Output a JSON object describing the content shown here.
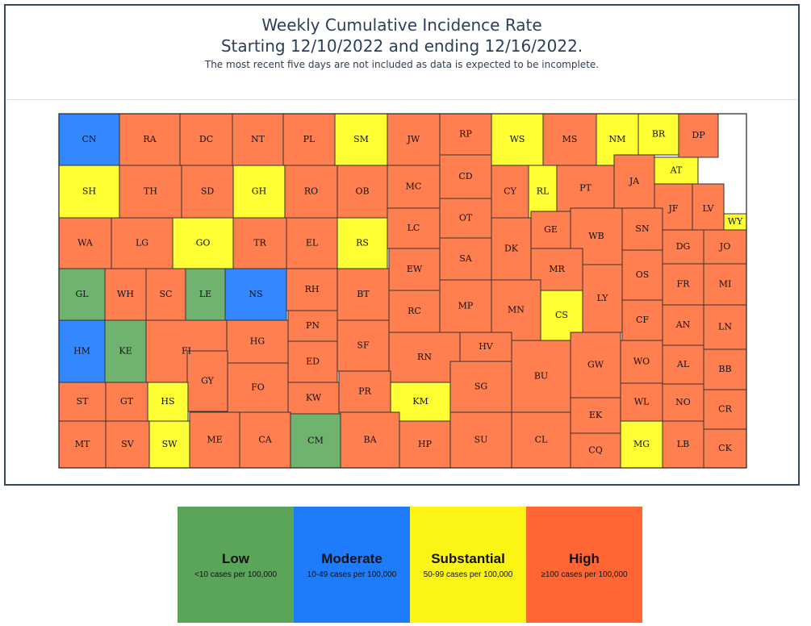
{
  "title_line1": "Weekly Cumulative Incidence Rate",
  "title_line2": "Starting 12/10/2022 and ending 12/16/2022.",
  "subtitle": "The most recent five days are not included as data is expected to be incomplete.",
  "colors": {
    "map_low": "#6fb36f",
    "map_moderate": "#3388ff",
    "map_substantial": "#ffff33",
    "map_high": "#ff7f50",
    "legend_low": "#5aa55a",
    "legend_moderate": "#1e7cfb",
    "legend_substantial": "#fcf414",
    "legend_high": "#ff6633"
  },
  "legend": [
    {
      "key": "low",
      "label": "Low",
      "desc": "<10 cases per 100,000"
    },
    {
      "key": "moderate",
      "label": "Moderate",
      "desc": "10-49 cases per 100,000"
    },
    {
      "key": "substantial",
      "label": "Substantial",
      "desc": "50-99 cases per 100,000"
    },
    {
      "key": "high",
      "label": "High",
      "desc": "≥100 cases per 100,000"
    }
  ],
  "counties": [
    {
      "name": "CN",
      "level": "moderate"
    },
    {
      "name": "RA",
      "level": "high"
    },
    {
      "name": "DC",
      "level": "high"
    },
    {
      "name": "NT",
      "level": "high"
    },
    {
      "name": "PL",
      "level": "high"
    },
    {
      "name": "SM",
      "level": "substantial"
    },
    {
      "name": "JW",
      "level": "high"
    },
    {
      "name": "RP",
      "level": "high"
    },
    {
      "name": "WS",
      "level": "substantial"
    },
    {
      "name": "MS",
      "level": "high"
    },
    {
      "name": "NM",
      "level": "substantial"
    },
    {
      "name": "BR",
      "level": "substantial"
    },
    {
      "name": "DP",
      "level": "high"
    },
    {
      "name": "SH",
      "level": "substantial"
    },
    {
      "name": "TH",
      "level": "high"
    },
    {
      "name": "SD",
      "level": "high"
    },
    {
      "name": "GH",
      "level": "substantial"
    },
    {
      "name": "RO",
      "level": "high"
    },
    {
      "name": "OB",
      "level": "high"
    },
    {
      "name": "MC",
      "level": "high"
    },
    {
      "name": "CD",
      "level": "high"
    },
    {
      "name": "CY",
      "level": "high"
    },
    {
      "name": "RL",
      "level": "substantial"
    },
    {
      "name": "PT",
      "level": "high"
    },
    {
      "name": "JA",
      "level": "high"
    },
    {
      "name": "AT",
      "level": "substantial"
    },
    {
      "name": "JF",
      "level": "high"
    },
    {
      "name": "LV",
      "level": "high"
    },
    {
      "name": "WY",
      "level": "substantial"
    },
    {
      "name": "WA",
      "level": "high"
    },
    {
      "name": "LG",
      "level": "high"
    },
    {
      "name": "GO",
      "level": "substantial"
    },
    {
      "name": "TR",
      "level": "high"
    },
    {
      "name": "EL",
      "level": "high"
    },
    {
      "name": "RS",
      "level": "substantial"
    },
    {
      "name": "LC",
      "level": "high"
    },
    {
      "name": "OT",
      "level": "high"
    },
    {
      "name": "DK",
      "level": "high"
    },
    {
      "name": "GE",
      "level": "high"
    },
    {
      "name": "WB",
      "level": "high"
    },
    {
      "name": "SN",
      "level": "high"
    },
    {
      "name": "DG",
      "level": "high"
    },
    {
      "name": "JO",
      "level": "high"
    },
    {
      "name": "GL",
      "level": "low"
    },
    {
      "name": "WH",
      "level": "high"
    },
    {
      "name": "SC",
      "level": "high"
    },
    {
      "name": "LE",
      "level": "low"
    },
    {
      "name": "NS",
      "level": "moderate"
    },
    {
      "name": "RH",
      "level": "high"
    },
    {
      "name": "BT",
      "level": "high"
    },
    {
      "name": "EW",
      "level": "high"
    },
    {
      "name": "SA",
      "level": "high"
    },
    {
      "name": "MR",
      "level": "high"
    },
    {
      "name": "OS",
      "level": "high"
    },
    {
      "name": "FR",
      "level": "high"
    },
    {
      "name": "MI",
      "level": "high"
    },
    {
      "name": "HM",
      "level": "moderate"
    },
    {
      "name": "KE",
      "level": "low"
    },
    {
      "name": "FI",
      "level": "high"
    },
    {
      "name": "HG",
      "level": "high"
    },
    {
      "name": "PN",
      "level": "high"
    },
    {
      "name": "RC",
      "level": "high"
    },
    {
      "name": "MP",
      "level": "high"
    },
    {
      "name": "MN",
      "level": "high"
    },
    {
      "name": "CS",
      "level": "substantial"
    },
    {
      "name": "LY",
      "level": "high"
    },
    {
      "name": "CF",
      "level": "high"
    },
    {
      "name": "AN",
      "level": "high"
    },
    {
      "name": "LN",
      "level": "high"
    },
    {
      "name": "GY",
      "level": "high"
    },
    {
      "name": "ED",
      "level": "high"
    },
    {
      "name": "SF",
      "level": "high"
    },
    {
      "name": "RN",
      "level": "high"
    },
    {
      "name": "HV",
      "level": "high"
    },
    {
      "name": "BU",
      "level": "high"
    },
    {
      "name": "GW",
      "level": "high"
    },
    {
      "name": "WO",
      "level": "high"
    },
    {
      "name": "AL",
      "level": "high"
    },
    {
      "name": "BB",
      "level": "high"
    },
    {
      "name": "ST",
      "level": "high"
    },
    {
      "name": "GT",
      "level": "high"
    },
    {
      "name": "HS",
      "level": "substantial"
    },
    {
      "name": "FO",
      "level": "high"
    },
    {
      "name": "KW",
      "level": "high"
    },
    {
      "name": "PR",
      "level": "high"
    },
    {
      "name": "KM",
      "level": "substantial"
    },
    {
      "name": "SG",
      "level": "high"
    },
    {
      "name": "EK",
      "level": "high"
    },
    {
      "name": "WL",
      "level": "high"
    },
    {
      "name": "NO",
      "level": "high"
    },
    {
      "name": "CR",
      "level": "high"
    },
    {
      "name": "MT",
      "level": "high"
    },
    {
      "name": "SV",
      "level": "high"
    },
    {
      "name": "SW",
      "level": "substantial"
    },
    {
      "name": "ME",
      "level": "high"
    },
    {
      "name": "CA",
      "level": "high"
    },
    {
      "name": "CM",
      "level": "low"
    },
    {
      "name": "BA",
      "level": "high"
    },
    {
      "name": "HP",
      "level": "high"
    },
    {
      "name": "SU",
      "level": "high"
    },
    {
      "name": "CL",
      "level": "high"
    },
    {
      "name": "CQ",
      "level": "high"
    },
    {
      "name": "MG",
      "level": "substantial"
    },
    {
      "name": "LB",
      "level": "high"
    },
    {
      "name": "CK",
      "level": "high"
    }
  ]
}
